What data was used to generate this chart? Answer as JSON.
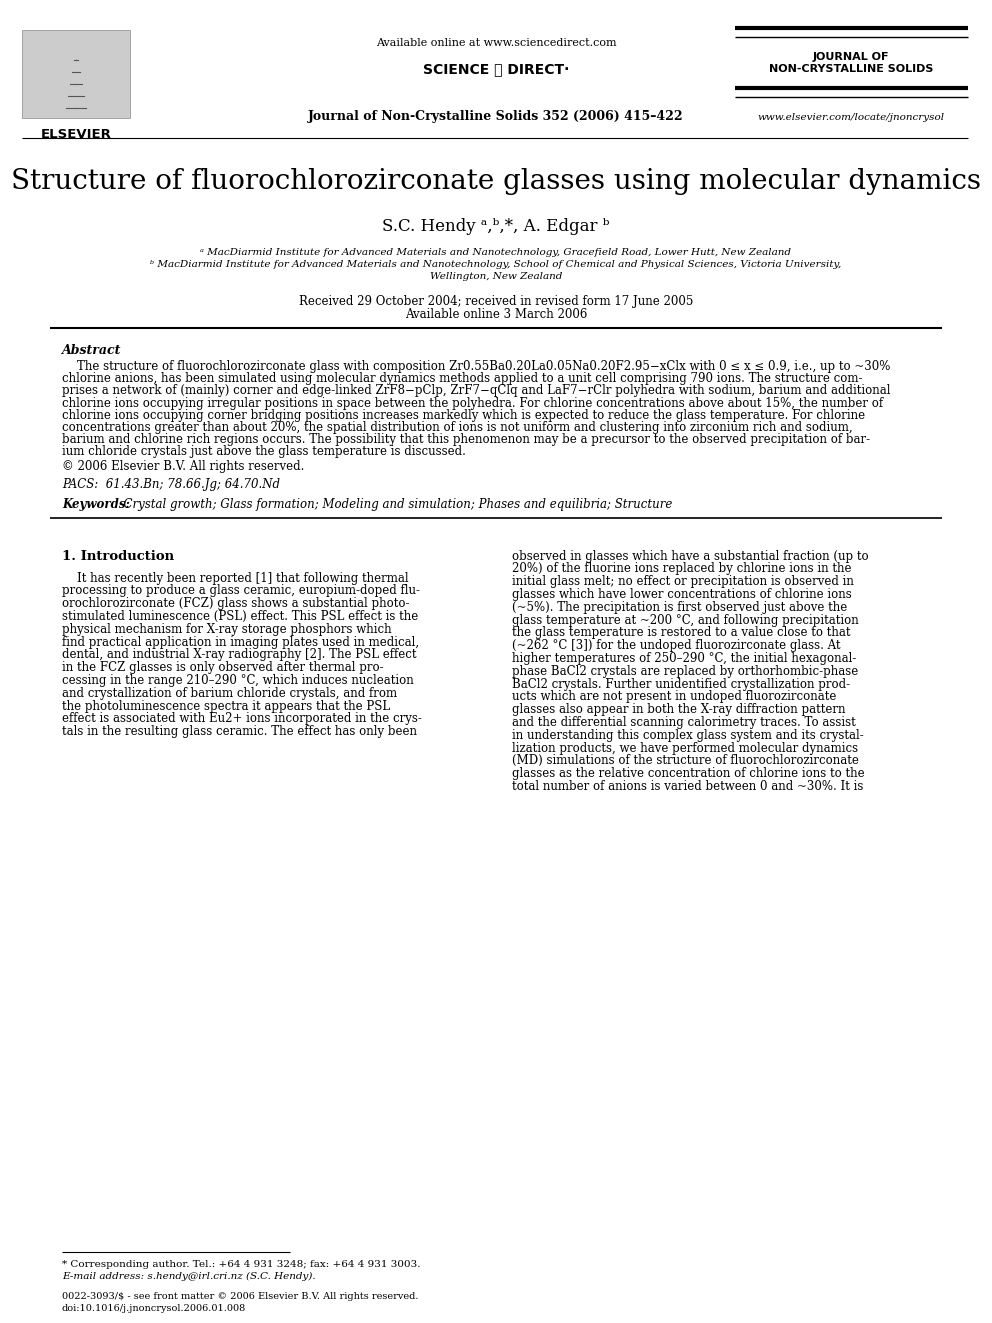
{
  "title": "Structure of fluorochlorozirconate glasses using molecular dynamics",
  "authors": "S.C. Hendy ᵃ,ᵇ,*, A. Edgar ᵇ",
  "affil_a": "ᵃ MacDiarmid Institute for Advanced Materials and Nanotechnology, Gracefield Road, Lower Hutt, New Zealand",
  "affil_b": "ᵇ MacDiarmid Institute for Advanced Materials and Nanotechnology, School of Chemical and Physical Sciences, Victoria University,",
  "affil_b2": "Wellington, New Zealand",
  "received": "Received 29 October 2004; received in revised form 17 June 2005",
  "available": "Available online 3 March 2006",
  "journal_header": "Journal of Non-Crystalline Solids 352 (2006) 415–422",
  "available_online": "Available online at www.sciencedirect.com",
  "journal_name_line1": "JOURNAL OF",
  "journal_name_line2": "NON-CRYSTALLINE SOLIDS",
  "website": "www.elsevier.com/locate/jnoncrysol",
  "elsevier_text": "ELSEVIER",
  "abstract_title": "Abstract",
  "copyright": "© 2006 Elsevier B.V. All rights reserved.",
  "pacs": "PACS:  61.43.Bn; 78.66.Jg; 64.70.Nd",
  "keywords_label": "Keywords:",
  "keywords": "  Crystal growth; Glass formation; Modeling and simulation; Phases and equilibria; Structure",
  "section1_title": "1. Introduction",
  "footnote_star": "* Corresponding author. Tel.: +64 4 931 3248; fax: +64 4 931 3003.",
  "footnote_email": "E-mail address: s.hendy@irl.cri.nz (S.C. Hendy).",
  "footer_issn": "0022-3093/$ - see front matter © 2006 Elsevier B.V. All rights reserved.",
  "footer_doi": "doi:10.1016/j.jnoncrysol.2006.01.008",
  "abstract_lines": [
    "    The structure of fluorochlorozirconate glass with composition Zr0.55Ba0.20La0.05Na0.20F2.95−xClx with 0 ≤ x ≤ 0.9, i.e., up to ~30%",
    "chlorine anions, has been simulated using molecular dynamics methods applied to a unit cell comprising 790 ions. The structure com-",
    "prises a network of (mainly) corner and edge-linked ZrF8−pClp, ZrF7−qClq and LaF7−rClr polyhedra with sodium, barium and additional",
    "chlorine ions occupying irregular positions in space between the polyhedra. For chlorine concentrations above about 15%, the number of",
    "chlorine ions occupying corner bridging positions increases markedly which is expected to reduce the glass temperature. For chlorine",
    "concentrations greater than about 20%, the spatial distribution of ions is not uniform and clustering into zirconium rich and sodium,",
    "barium and chlorine rich regions occurs. The possibility that this phenomenon may be a precursor to the observed precipitation of bar-",
    "ium chloride crystals just above the glass temperature is discussed."
  ],
  "col1_lines": [
    "    It has recently been reported [1] that following thermal",
    "processing to produce a glass ceramic, europium-doped flu-",
    "orochlorozirconate (FCZ) glass shows a substantial photo-",
    "stimulated luminescence (PSL) effect. This PSL effect is the",
    "physical mechanism for X-ray storage phosphors which",
    "find practical application in imaging plates used in medical,",
    "dental, and industrial X-ray radiography [2]. The PSL effect",
    "in the FCZ glasses is only observed after thermal pro-",
    "cessing in the range 210–290 °C, which induces nucleation",
    "and crystallization of barium chloride crystals, and from",
    "the photoluminescence spectra it appears that the PSL",
    "effect is associated with Eu2+ ions incorporated in the crys-",
    "tals in the resulting glass ceramic. The effect has only been"
  ],
  "col2_lines": [
    "observed in glasses which have a substantial fraction (up to",
    "20%) of the fluorine ions replaced by chlorine ions in the",
    "initial glass melt; no effect or precipitation is observed in",
    "glasses which have lower concentrations of chlorine ions",
    "(~5%). The precipitation is first observed just above the",
    "glass temperature at ~200 °C, and following precipitation",
    "the glass temperature is restored to a value close to that",
    "(~262 °C [3]) for the undoped fluorozirconate glass. At",
    "higher temperatures of 250–290 °C, the initial hexagonal-",
    "phase BaCl2 crystals are replaced by orthorhombic-phase",
    "BaCl2 crystals. Further unidentified crystallization prod-",
    "ucts which are not present in undoped fluorozirconate",
    "glasses also appear in both the X-ray diffraction pattern",
    "and the differential scanning calorimetry traces. To assist",
    "in understanding this complex glass system and its crystal-",
    "lization products, we have performed molecular dynamics",
    "(MD) simulations of the structure of fluorochlorozirconate",
    "glasses as the relative concentration of chlorine ions to the",
    "total number of anions is varied between 0 and ~30%. It is"
  ],
  "bg_color": "#ffffff",
  "text_color": "#000000"
}
